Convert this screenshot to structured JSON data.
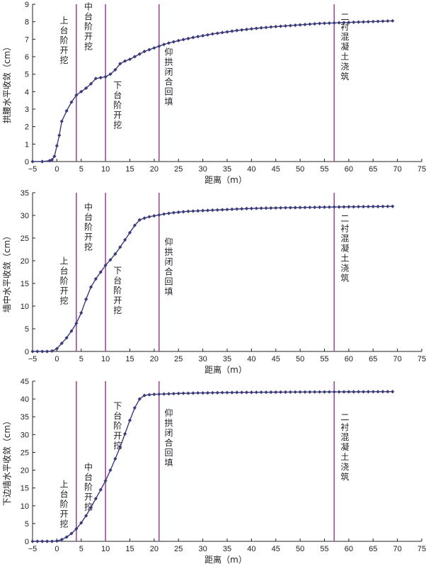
{
  "chart_data": [
    {
      "type": "line",
      "xlabel": "距离（m）",
      "ylabel": "拱腰水平收敛（cm）",
      "xlim": [
        -5,
        75
      ],
      "ylim": [
        0,
        9
      ],
      "xticks": [
        -5,
        0,
        5,
        10,
        15,
        20,
        25,
        30,
        35,
        40,
        45,
        50,
        55,
        60,
        65,
        70,
        75
      ],
      "yticks": [
        0,
        1,
        2,
        3,
        4,
        5,
        6,
        7,
        8,
        9
      ],
      "grid": false,
      "vlines": [
        4,
        10,
        21,
        57
      ],
      "annotations": [
        {
          "text": "上台阶开挖",
          "x": 1.5,
          "y": 7.9
        },
        {
          "text": "中台阶开挖",
          "x": 6.5,
          "y": 8.7
        },
        {
          "text": "下台阶开挖",
          "x": 12.5,
          "y": 4.2
        },
        {
          "text": "仰拱闭合回填",
          "x": 23,
          "y": 6.1
        },
        {
          "text": "二衬混凝土浇筑",
          "x": 59.2,
          "y": 8.1
        }
      ],
      "series": [
        {
          "color": "#3b3b7c",
          "x": [
            -5,
            -3,
            -1.5,
            -1,
            -0.5,
            0,
            0.5,
            1,
            2,
            3,
            4,
            5,
            6,
            7,
            8,
            9,
            10,
            11,
            12,
            13,
            14,
            15,
            16,
            17,
            18,
            19,
            20,
            21,
            22,
            23,
            24,
            25,
            26,
            27,
            28,
            29,
            30,
            31,
            32,
            33,
            34,
            35,
            36,
            37,
            38,
            39,
            40,
            41,
            42,
            43,
            44,
            45,
            46,
            47,
            48,
            49,
            50,
            51,
            52,
            53,
            54,
            55,
            56,
            57,
            58,
            59,
            60,
            61,
            62,
            63,
            64,
            65,
            66,
            67,
            68,
            69
          ],
          "y": [
            0,
            0,
            0.05,
            0.1,
            0.3,
            0.9,
            1.5,
            2.3,
            2.9,
            3.4,
            3.8,
            4.0,
            4.2,
            4.45,
            4.75,
            4.8,
            4.85,
            5.0,
            5.25,
            5.6,
            5.75,
            5.85,
            6.0,
            6.15,
            6.3,
            6.4,
            6.5,
            6.6,
            6.7,
            6.78,
            6.85,
            6.92,
            6.98,
            7.04,
            7.1,
            7.15,
            7.2,
            7.25,
            7.3,
            7.34,
            7.38,
            7.42,
            7.46,
            7.5,
            7.53,
            7.56,
            7.59,
            7.62,
            7.65,
            7.67,
            7.7,
            7.72,
            7.74,
            7.76,
            7.78,
            7.8,
            7.82,
            7.84,
            7.86,
            7.88,
            7.9,
            7.91,
            7.92,
            7.93,
            7.94,
            7.95,
            7.96,
            7.97,
            7.98,
            7.99,
            8.0,
            8.01,
            8.02,
            8.03,
            8.04,
            8.05
          ]
        }
      ]
    },
    {
      "type": "line",
      "xlabel": "距离（m）",
      "ylabel": "墙中水平收敛（cm）",
      "xlim": [
        -5,
        75
      ],
      "ylim": [
        0,
        35
      ],
      "xticks": [
        -5,
        0,
        5,
        10,
        15,
        20,
        25,
        30,
        35,
        40,
        45,
        50,
        55,
        60,
        65,
        70,
        75
      ],
      "yticks": [
        0,
        5,
        10,
        15,
        20,
        25,
        30,
        35
      ],
      "grid": false,
      "vlines": [
        4,
        10,
        21,
        57
      ],
      "annotations": [
        {
          "text": "上台阶开挖",
          "x": 1.5,
          "y": 19.3
        },
        {
          "text": "中台阶开挖",
          "x": 6.5,
          "y": 31.2
        },
        {
          "text": "下台阶开挖",
          "x": 12.5,
          "y": 17.2
        },
        {
          "text": "仰拱闭合回填",
          "x": 23,
          "y": 23.5
        },
        {
          "text": "二衬混凝土浇筑",
          "x": 59.2,
          "y": 28.7
        }
      ],
      "series": [
        {
          "color": "#3b3b7c",
          "x": [
            -5,
            -4,
            -3,
            -2,
            -1,
            0,
            1,
            2,
            3,
            4,
            5,
            6,
            7,
            8,
            9,
            10,
            11,
            12,
            13,
            14,
            15,
            16,
            17,
            18,
            19,
            20,
            21,
            22,
            23,
            24,
            25,
            26,
            27,
            28,
            29,
            30,
            31,
            32,
            33,
            34,
            35,
            36,
            37,
            38,
            39,
            40,
            41,
            42,
            43,
            44,
            45,
            46,
            47,
            48,
            49,
            50,
            51,
            52,
            53,
            54,
            55,
            56,
            57,
            58,
            59,
            60,
            61,
            62,
            63,
            64,
            65,
            66,
            67,
            68,
            69
          ],
          "y": [
            0,
            0,
            0,
            0,
            0.1,
            0.6,
            1.8,
            3.0,
            4.5,
            6.2,
            8.5,
            11.5,
            14.2,
            16.0,
            17.5,
            19.0,
            20.2,
            21.5,
            23.0,
            24.6,
            26.2,
            27.8,
            29.0,
            29.4,
            29.7,
            29.9,
            30.1,
            30.3,
            30.45,
            30.6,
            30.7,
            30.8,
            30.9,
            30.95,
            31.0,
            31.05,
            31.1,
            31.15,
            31.2,
            31.25,
            31.3,
            31.35,
            31.4,
            31.45,
            31.5,
            31.52,
            31.55,
            31.58,
            31.6,
            31.62,
            31.65,
            31.67,
            31.69,
            31.7,
            31.72,
            31.74,
            31.75,
            31.77,
            31.78,
            31.8,
            31.82,
            31.83,
            31.85,
            31.86,
            31.88,
            31.9,
            31.9,
            31.92,
            31.93,
            31.94,
            31.95,
            31.96,
            31.97,
            31.98,
            31.99
          ]
        }
      ]
    },
    {
      "type": "line",
      "xlabel": "距离（m）",
      "ylabel": "下边墙水平收敛（cm）",
      "xlim": [
        -5,
        75
      ],
      "ylim": [
        0,
        45
      ],
      "xticks": [
        -5,
        0,
        5,
        10,
        15,
        20,
        25,
        30,
        35,
        40,
        45,
        50,
        55,
        60,
        65,
        70,
        75
      ],
      "yticks": [
        0,
        5,
        10,
        15,
        20,
        25,
        30,
        35,
        40,
        45
      ],
      "grid": false,
      "vlines": [
        4,
        10,
        21,
        57
      ],
      "annotations": [
        {
          "text": "上台阶开挖",
          "x": 1.5,
          "y": 15.2
        },
        {
          "text": "中台阶开挖",
          "x": 6.5,
          "y": 20.0
        },
        {
          "text": "下台阶开挖",
          "x": 12.5,
          "y": 37.2
        },
        {
          "text": "仰拱闭合回填",
          "x": 23,
          "y": 35.2
        },
        {
          "text": "二衬混凝土浇筑",
          "x": 59.2,
          "y": 34.0
        }
      ],
      "series": [
        {
          "color": "#3b3b7c",
          "x": [
            -5,
            -4,
            -3,
            -2,
            -1,
            0,
            1,
            2,
            3,
            4,
            5,
            6,
            7,
            8,
            9,
            10,
            11,
            12,
            13,
            14,
            15,
            16,
            17,
            18,
            19,
            20,
            21,
            22,
            23,
            24,
            25,
            26,
            27,
            28,
            29,
            30,
            31,
            32,
            33,
            34,
            35,
            36,
            37,
            38,
            39,
            40,
            41,
            42,
            43,
            44,
            45,
            46,
            47,
            48,
            49,
            50,
            51,
            52,
            53,
            54,
            55,
            56,
            57,
            58,
            59,
            60,
            61,
            62,
            63,
            64,
            65,
            66,
            67,
            68,
            69
          ],
          "y": [
            0,
            0,
            0,
            0,
            0,
            0.1,
            0.5,
            1.2,
            2.2,
            3.5,
            5.2,
            7.2,
            9.5,
            12.0,
            14.5,
            17.0,
            20.0,
            23.2,
            26.5,
            30.2,
            34.0,
            37.5,
            40.0,
            41.0,
            41.2,
            41.3,
            41.35,
            41.4,
            41.45,
            41.5,
            41.55,
            41.6,
            41.6,
            41.65,
            41.7,
            41.7,
            41.72,
            41.75,
            41.77,
            41.8,
            41.8,
            41.82,
            41.84,
            41.85,
            41.86,
            41.87,
            41.88,
            41.9,
            41.9,
            41.91,
            41.92,
            41.93,
            41.94,
            41.95,
            41.95,
            41.96,
            41.97,
            41.97,
            41.98,
            41.98,
            41.99,
            42.0,
            42.0,
            42.0,
            42.01,
            42.02,
            42.02,
            42.03,
            42.03,
            42.04,
            42.05,
            42.05,
            42.06,
            42.06,
            42.07
          ]
        }
      ]
    }
  ]
}
